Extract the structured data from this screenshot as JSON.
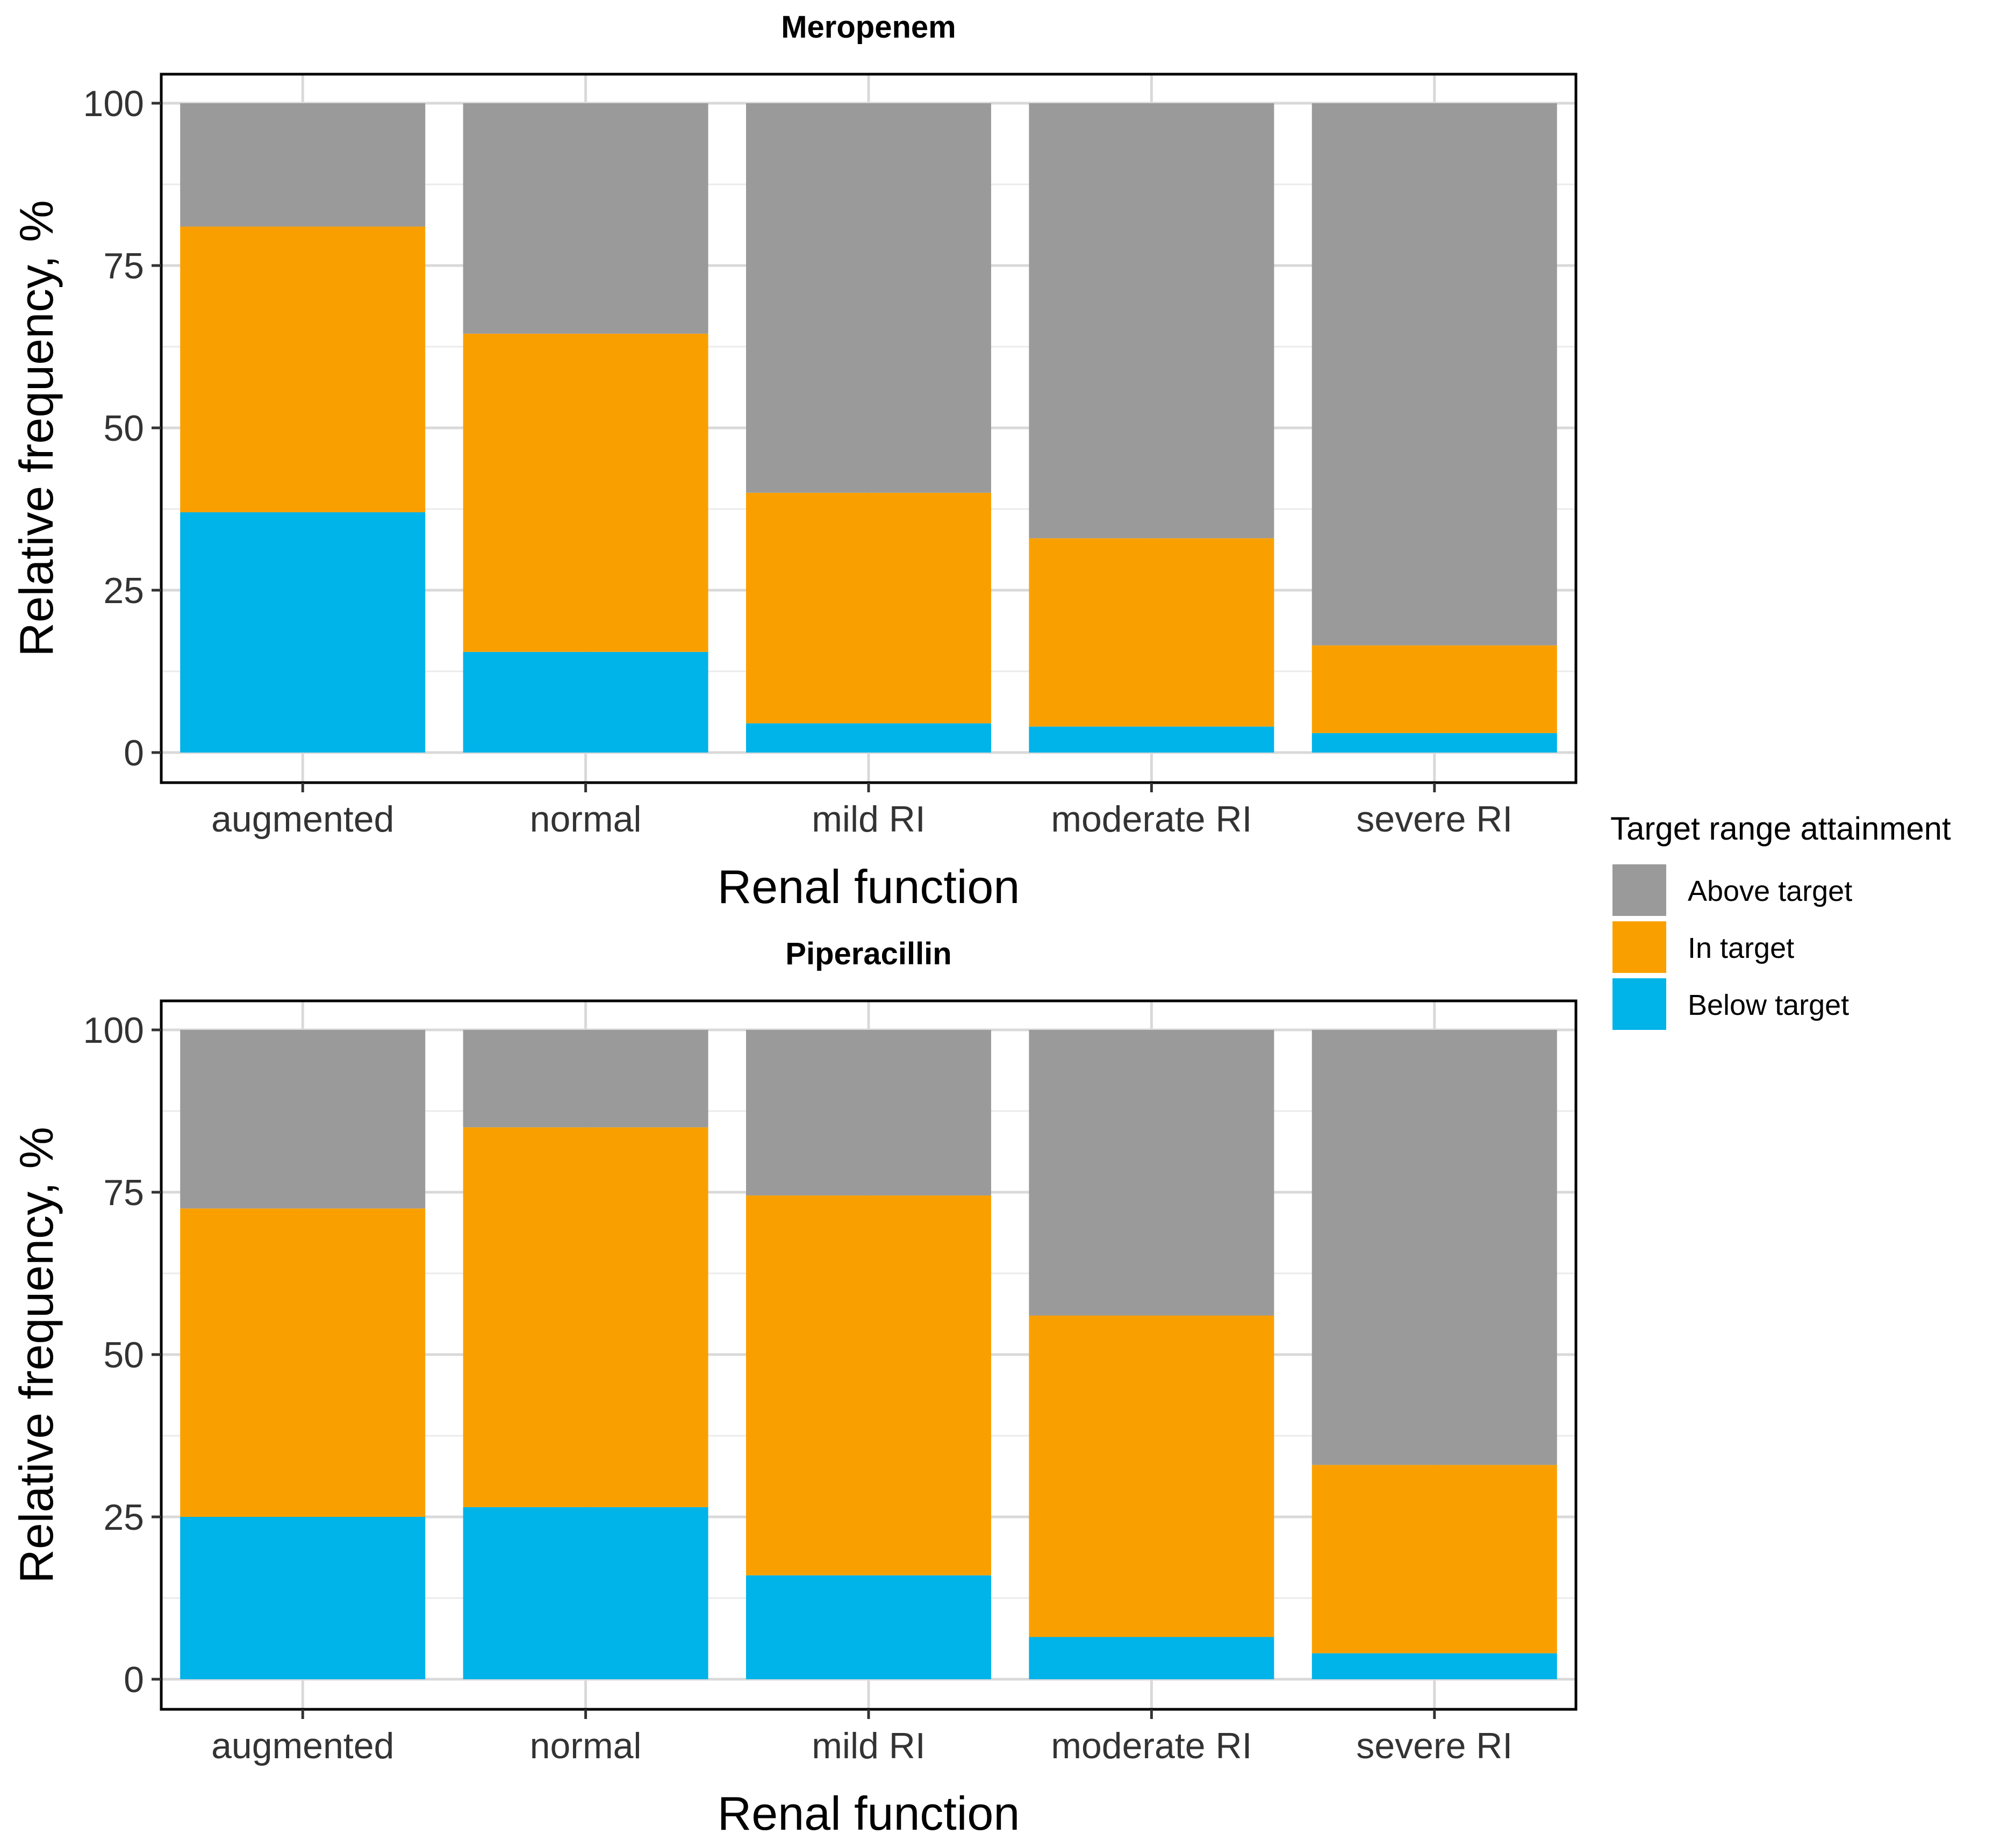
{
  "legend": {
    "title": "Target range attainment",
    "items": [
      {
        "key": "above",
        "label": "Above target",
        "color": "#9A9A9A"
      },
      {
        "key": "in",
        "label": "In target",
        "color": "#F9A000"
      },
      {
        "key": "below",
        "label": "Below target",
        "color": "#00B3E9"
      }
    ]
  },
  "chart_data": [
    {
      "type": "bar",
      "stacked": true,
      "title": "Meropenem",
      "xlabel": "Renal function",
      "ylabel": "Relative frequency, %",
      "categories": [
        "augmented",
        "normal",
        "mild RI",
        "moderate RI",
        "severe RI"
      ],
      "ylim": [
        0,
        100
      ],
      "yticks": [
        "0",
        "25",
        "50",
        "75",
        "100"
      ],
      "grid": true,
      "legend_position": "right",
      "series": [
        {
          "name": "Below target",
          "color": "#00B3E9",
          "values": [
            37,
            15.5,
            4.5,
            4,
            3
          ]
        },
        {
          "name": "In target",
          "color": "#F9A000",
          "values": [
            44,
            49,
            35.5,
            29,
            13.5
          ]
        },
        {
          "name": "Above target",
          "color": "#9A9A9A",
          "values": [
            19,
            35.5,
            60,
            67,
            83.5
          ]
        }
      ]
    },
    {
      "type": "bar",
      "stacked": true,
      "title": "Piperacillin",
      "xlabel": "Renal function",
      "ylabel": "Relative frequency, %",
      "categories": [
        "augmented",
        "normal",
        "mild RI",
        "moderate RI",
        "severe RI"
      ],
      "ylim": [
        0,
        100
      ],
      "yticks": [
        "0",
        "25",
        "50",
        "75",
        "100"
      ],
      "grid": true,
      "legend_position": "right",
      "series": [
        {
          "name": "Below target",
          "color": "#00B3E9",
          "values": [
            25,
            26.5,
            16,
            6.5,
            4
          ]
        },
        {
          "name": "In target",
          "color": "#F9A000",
          "values": [
            47.5,
            58.5,
            58.5,
            49.5,
            29
          ]
        },
        {
          "name": "Above target",
          "color": "#9A9A9A",
          "values": [
            27.5,
            15,
            25.5,
            44,
            67
          ]
        }
      ]
    }
  ]
}
